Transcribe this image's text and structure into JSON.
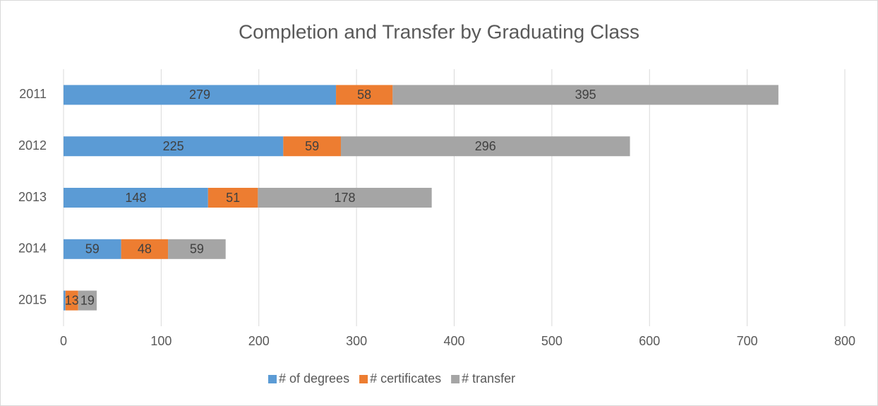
{
  "chart_data": {
    "type": "stacked-bar-horizontal",
    "title": "Completion and Transfer by Graduating Class",
    "categories": [
      "2011",
      "2012",
      "2013",
      "2014",
      "2015"
    ],
    "series": [
      {
        "name": "# of degrees",
        "color": "#5b9bd5",
        "values": [
          279,
          225,
          148,
          59,
          2
        ],
        "value_labels": [
          "279",
          "225",
          "148",
          "59",
          null
        ]
      },
      {
        "name": "# certificates",
        "color": "#ed7d31",
        "values": [
          58,
          59,
          51,
          48,
          13
        ]
      },
      {
        "name": "# transfer",
        "color": "#a5a5a5",
        "values": [
          395,
          296,
          178,
          59,
          19
        ]
      }
    ],
    "xlim": [
      0,
      800
    ],
    "xticks": [
      0,
      100,
      200,
      300,
      400,
      500,
      600,
      700,
      800
    ],
    "grid": true,
    "legend": "bottom"
  }
}
